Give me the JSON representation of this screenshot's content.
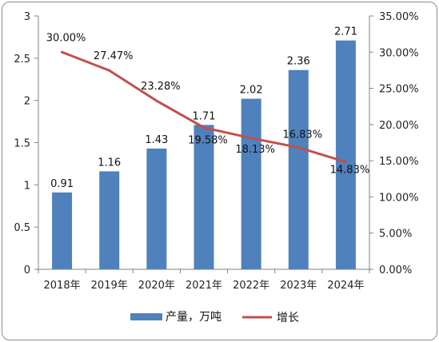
{
  "chart_data": {
    "type": "bar",
    "categories": [
      "2018年",
      "2019年",
      "2020年",
      "2021年",
      "2022年",
      "2023年",
      "2024年"
    ],
    "series": [
      {
        "name": "产量，万吨",
        "type": "bar",
        "axis": "left",
        "color": "#4f81bd",
        "values": [
          0.91,
          1.16,
          1.43,
          1.71,
          2.02,
          2.36,
          2.71
        ],
        "labels": [
          "0.91",
          "1.16",
          "1.43",
          "1.71",
          "2.02",
          "2.36",
          "2.71"
        ]
      },
      {
        "name": "增长",
        "type": "line",
        "axis": "right",
        "color": "#c0504d",
        "values": [
          30.0,
          27.47,
          23.28,
          19.58,
          18.13,
          16.83,
          14.83
        ],
        "labels": [
          "30.00%",
          "27.47%",
          "23.28%",
          "19.58%",
          "18.13%",
          "16.83%",
          "14.83%"
        ]
      }
    ],
    "y_left": {
      "ylim": [
        0,
        3
      ],
      "ticks": [
        0,
        0.5,
        1,
        1.5,
        2,
        2.5,
        3
      ],
      "tick_labels": [
        "0",
        "0.5",
        "1",
        "1.5",
        "2",
        "2.5",
        "3"
      ]
    },
    "y_right": {
      "ylim": [
        0,
        35
      ],
      "ticks": [
        0,
        5,
        10,
        15,
        20,
        25,
        30,
        35
      ],
      "tick_labels": [
        "0.00%",
        "5.00%",
        "10.00%",
        "15.00%",
        "20.00%",
        "25.00%",
        "30.00%",
        "35.00%"
      ]
    },
    "grid": false,
    "legend_position": "bottom"
  }
}
